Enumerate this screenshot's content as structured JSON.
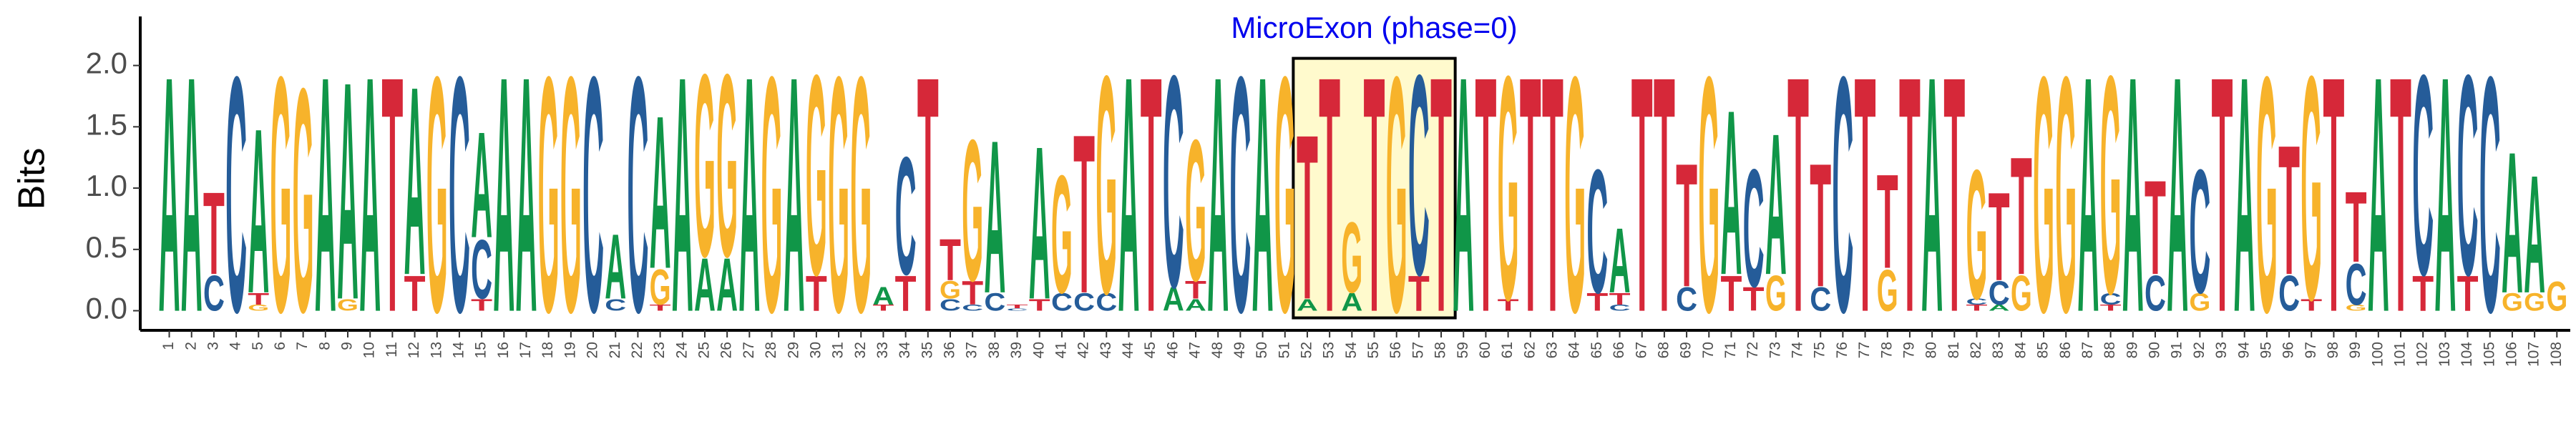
{
  "chart_data": {
    "type": "logo",
    "title": "MicroExon (phase=0)",
    "y_label": "Bits",
    "highlight": {
      "start": 52,
      "end": 58
    },
    "colors": {
      "A": "#109648",
      "C": "#255c99",
      "G": "#f7b32b",
      "T": "#d62839"
    },
    "xlim": [
      -0.3,
      108.6
    ],
    "ylim": [
      -0.16,
      2.4
    ],
    "yticks": [
      {
        "value": 0,
        "label": "0.0"
      },
      0.5,
      {
        "value": 1,
        "label": "1.0"
      },
      1.5,
      {
        "value": 2,
        "label": "2.0"
      }
    ],
    "x": [
      1,
      2,
      3,
      4,
      5,
      6,
      7,
      8,
      9,
      10,
      11,
      12,
      13,
      14,
      15,
      16,
      17,
      18,
      19,
      20,
      21,
      22,
      23,
      24,
      25,
      26,
      27,
      28,
      29,
      30,
      31,
      32,
      33,
      34,
      35,
      36,
      37,
      38,
      39,
      40,
      41,
      42,
      43,
      44,
      45,
      46,
      47,
      48,
      49,
      50,
      51,
      52,
      53,
      54,
      55,
      56,
      57,
      58,
      59,
      60,
      61,
      62,
      63,
      64,
      65,
      66,
      67,
      68,
      69,
      70,
      71,
      72,
      73,
      74,
      75,
      76,
      77,
      78,
      79,
      80,
      81,
      82,
      83,
      84,
      85,
      86,
      87,
      88,
      89,
      90,
      91,
      92,
      93,
      94,
      95,
      96,
      97,
      98,
      99,
      100,
      101,
      102,
      103,
      104,
      105,
      106,
      107,
      108
    ],
    "positions": [
      {
        "letters": [
          "A"
        ],
        "bits": [
          2
        ]
      },
      {
        "letters": [
          "A"
        ],
        "bits": [
          2
        ]
      },
      {
        "letters": [
          "C",
          "T"
        ],
        "bits": [
          0.3,
          0.7
        ]
      },
      {
        "letters": [
          "C"
        ],
        "bits": [
          2
        ]
      },
      {
        "letters": [
          "G",
          "T",
          "A"
        ],
        "bits": [
          0.05,
          0.1,
          1.4
        ]
      },
      {
        "letters": [
          "G"
        ],
        "bits": [
          2
        ]
      },
      {
        "letters": [
          "G"
        ],
        "bits": [
          1.9
        ]
      },
      {
        "letters": [
          "A"
        ],
        "bits": [
          2
        ]
      },
      {
        "letters": [
          "G",
          "A"
        ],
        "bits": [
          0.1,
          1.85
        ]
      },
      {
        "letters": [
          "A"
        ],
        "bits": [
          2
        ]
      },
      {
        "letters": [
          "T"
        ],
        "bits": [
          2
        ]
      },
      {
        "letters": [
          "T",
          "A"
        ],
        "bits": [
          0.3,
          1.6
        ]
      },
      {
        "letters": [
          "G"
        ],
        "bits": [
          2
        ]
      },
      {
        "letters": [
          "C"
        ],
        "bits": [
          2
        ]
      },
      {
        "letters": [
          "T",
          "C",
          "A"
        ],
        "bits": [
          0.1,
          0.5,
          0.9
        ]
      },
      {
        "letters": [
          "A"
        ],
        "bits": [
          2
        ]
      },
      {
        "letters": [
          "A"
        ],
        "bits": [
          2
        ]
      },
      {
        "letters": [
          "G"
        ],
        "bits": [
          2
        ]
      },
      {
        "letters": [
          "G"
        ],
        "bits": [
          2
        ]
      },
      {
        "letters": [
          "C"
        ],
        "bits": [
          2
        ]
      },
      {
        "letters": [
          "C",
          "A"
        ],
        "bits": [
          0.1,
          0.55
        ]
      },
      {
        "letters": [
          "C"
        ],
        "bits": [
          2
        ]
      },
      {
        "letters": [
          "T",
          "G",
          "A"
        ],
        "bits": [
          0.05,
          0.3,
          1.3
        ]
      },
      {
        "letters": [
          "A"
        ],
        "bits": [
          2
        ]
      },
      {
        "letters": [
          "A",
          "G"
        ],
        "bits": [
          0.45,
          1.55
        ]
      },
      {
        "letters": [
          "A",
          "G"
        ],
        "bits": [
          0.45,
          1.55
        ]
      },
      {
        "letters": [
          "A"
        ],
        "bits": [
          2
        ]
      },
      {
        "letters": [
          "G"
        ],
        "bits": [
          2
        ]
      },
      {
        "letters": [
          "A"
        ],
        "bits": [
          2
        ]
      },
      {
        "letters": [
          "T",
          "G"
        ],
        "bits": [
          0.3,
          1.7
        ]
      },
      {
        "letters": [
          "G"
        ],
        "bits": [
          2
        ]
      },
      {
        "letters": [
          "G"
        ],
        "bits": [
          2
        ]
      },
      {
        "letters": [
          "T",
          "A"
        ],
        "bits": [
          0.05,
          0.15
        ]
      },
      {
        "letters": [
          "T",
          "C"
        ],
        "bits": [
          0.3,
          1
        ]
      },
      {
        "letters": [
          "T"
        ],
        "bits": [
          2
        ]
      },
      {
        "letters": [
          "C",
          "G",
          "T"
        ],
        "bits": [
          0.1,
          0.15,
          0.35
        ]
      },
      {
        "letters": [
          "C",
          "T",
          "G"
        ],
        "bits": [
          0.05,
          0.2,
          1.2
        ]
      },
      {
        "letters": [
          "C",
          "A"
        ],
        "bits": [
          0.15,
          1.3
        ]
      },
      {
        "letters": [
          "C",
          "T"
        ],
        "bits": [
          0.02,
          0.03
        ]
      },
      {
        "letters": [
          "T",
          "A"
        ],
        "bits": [
          0.1,
          1.3
        ]
      },
      {
        "letters": [
          "C",
          "G"
        ],
        "bits": [
          0.15,
          1
        ]
      },
      {
        "letters": [
          "C",
          "T"
        ],
        "bits": [
          0.15,
          1.35
        ]
      },
      {
        "letters": [
          "C",
          "G"
        ],
        "bits": [
          0.15,
          1.85
        ]
      },
      {
        "letters": [
          "A"
        ],
        "bits": [
          2
        ]
      },
      {
        "letters": [
          "T"
        ],
        "bits": [
          2
        ]
      },
      {
        "letters": [
          "A",
          "C"
        ],
        "bits": [
          0.2,
          1.8
        ]
      },
      {
        "letters": [
          "A",
          "T",
          "G"
        ],
        "bits": [
          0.1,
          0.15,
          1.2
        ]
      },
      {
        "letters": [
          "A"
        ],
        "bits": [
          2
        ]
      },
      {
        "letters": [
          "C"
        ],
        "bits": [
          2
        ]
      },
      {
        "letters": [
          "A"
        ],
        "bits": [
          2
        ]
      },
      {
        "letters": [
          "G"
        ],
        "bits": [
          2
        ]
      },
      {
        "letters": [
          "A",
          "T"
        ],
        "bits": [
          0.1,
          1.4
        ]
      },
      {
        "letters": [
          "T"
        ],
        "bits": [
          2
        ]
      },
      {
        "letters": [
          "A",
          "G"
        ],
        "bits": [
          0.15,
          0.6
        ]
      },
      {
        "letters": [
          "T"
        ],
        "bits": [
          2
        ]
      },
      {
        "letters": [
          "G"
        ],
        "bits": [
          2
        ]
      },
      {
        "letters": [
          "T",
          "C"
        ],
        "bits": [
          0.3,
          1.7
        ]
      },
      {
        "letters": [
          "T"
        ],
        "bits": [
          2
        ]
      },
      {
        "letters": [
          "A"
        ],
        "bits": [
          2
        ]
      },
      {
        "letters": [
          "T"
        ],
        "bits": [
          2
        ]
      },
      {
        "letters": [
          "T",
          "G"
        ],
        "bits": [
          0.1,
          1.9
        ]
      },
      {
        "letters": [
          "T"
        ],
        "bits": [
          2
        ]
      },
      {
        "letters": [
          "T"
        ],
        "bits": [
          2
        ]
      },
      {
        "letters": [
          "G"
        ],
        "bits": [
          2
        ]
      },
      {
        "letters": [
          "T",
          "C"
        ],
        "bits": [
          0.15,
          1.05
        ]
      },
      {
        "letters": [
          "C",
          "T",
          "A"
        ],
        "bits": [
          0.05,
          0.1,
          0.55
        ]
      },
      {
        "letters": [
          "T"
        ],
        "bits": [
          2
        ]
      },
      {
        "letters": [
          "T"
        ],
        "bits": [
          2
        ]
      },
      {
        "letters": [
          "C",
          "T"
        ],
        "bits": [
          0.2,
          1.05
        ]
      },
      {
        "letters": [
          "G"
        ],
        "bits": [
          2
        ]
      },
      {
        "letters": [
          "T",
          "A"
        ],
        "bits": [
          0.3,
          1.4
        ]
      },
      {
        "letters": [
          "T",
          "C"
        ],
        "bits": [
          0.2,
          1
        ]
      },
      {
        "letters": [
          "G",
          "A"
        ],
        "bits": [
          0.3,
          1.2
        ]
      },
      {
        "letters": [
          "T"
        ],
        "bits": [
          2
        ]
      },
      {
        "letters": [
          "C",
          "T"
        ],
        "bits": [
          0.2,
          1.05
        ]
      },
      {
        "letters": [
          "C"
        ],
        "bits": [
          2
        ]
      },
      {
        "letters": [
          "T"
        ],
        "bits": [
          2
        ]
      },
      {
        "letters": [
          "G",
          "T"
        ],
        "bits": [
          0.35,
          0.8
        ]
      },
      {
        "letters": [
          "T"
        ],
        "bits": [
          2
        ]
      },
      {
        "letters": [
          "A"
        ],
        "bits": [
          2
        ]
      },
      {
        "letters": [
          "T"
        ],
        "bits": [
          2
        ]
      },
      {
        "letters": [
          "T",
          "C",
          "G"
        ],
        "bits": [
          0.05,
          0.05,
          1.1
        ]
      },
      {
        "letters": [
          "A",
          "C",
          "T"
        ],
        "bits": [
          0.05,
          0.2,
          0.75
        ]
      },
      {
        "letters": [
          "G",
          "T"
        ],
        "bits": [
          0.3,
          1
        ]
      },
      {
        "letters": [
          "G"
        ],
        "bits": [
          2
        ]
      },
      {
        "letters": [
          "G"
        ],
        "bits": [
          2
        ]
      },
      {
        "letters": [
          "A"
        ],
        "bits": [
          2
        ]
      },
      {
        "letters": [
          "T",
          "C",
          "G"
        ],
        "bits": [
          0.05,
          0.1,
          1.85
        ]
      },
      {
        "letters": [
          "A"
        ],
        "bits": [
          2
        ]
      },
      {
        "letters": [
          "C",
          "T"
        ],
        "bits": [
          0.3,
          0.8
        ]
      },
      {
        "letters": [
          "A"
        ],
        "bits": [
          2
        ]
      },
      {
        "letters": [
          "G",
          "C"
        ],
        "bits": [
          0.15,
          1.05
        ]
      },
      {
        "letters": [
          "T"
        ],
        "bits": [
          2
        ]
      },
      {
        "letters": [
          "A"
        ],
        "bits": [
          2
        ]
      },
      {
        "letters": [
          "G"
        ],
        "bits": [
          2
        ]
      },
      {
        "letters": [
          "C",
          "T"
        ],
        "bits": [
          0.3,
          1.1
        ]
      },
      {
        "letters": [
          "T",
          "G"
        ],
        "bits": [
          0.1,
          1.9
        ]
      },
      {
        "letters": [
          "T"
        ],
        "bits": [
          2
        ]
      },
      {
        "letters": [
          "G",
          "C",
          "T"
        ],
        "bits": [
          0.05,
          0.35,
          0.6
        ]
      },
      {
        "letters": [
          "A"
        ],
        "bits": [
          2
        ]
      },
      {
        "letters": [
          "T"
        ],
        "bits": [
          2
        ]
      },
      {
        "letters": [
          "T",
          "C"
        ],
        "bits": [
          0.3,
          1.7
        ]
      },
      {
        "letters": [
          "A"
        ],
        "bits": [
          2
        ]
      },
      {
        "letters": [
          "T",
          "C"
        ],
        "bits": [
          0.3,
          1.7
        ]
      },
      {
        "letters": [
          "C"
        ],
        "bits": [
          2
        ]
      },
      {
        "letters": [
          "G",
          "A"
        ],
        "bits": [
          0.15,
          1.2
        ]
      },
      {
        "letters": [
          "G",
          "A"
        ],
        "bits": [
          0.15,
          1
        ]
      },
      {
        "letters": [
          "G"
        ],
        "bits": [
          0.25
        ]
      }
    ]
  }
}
